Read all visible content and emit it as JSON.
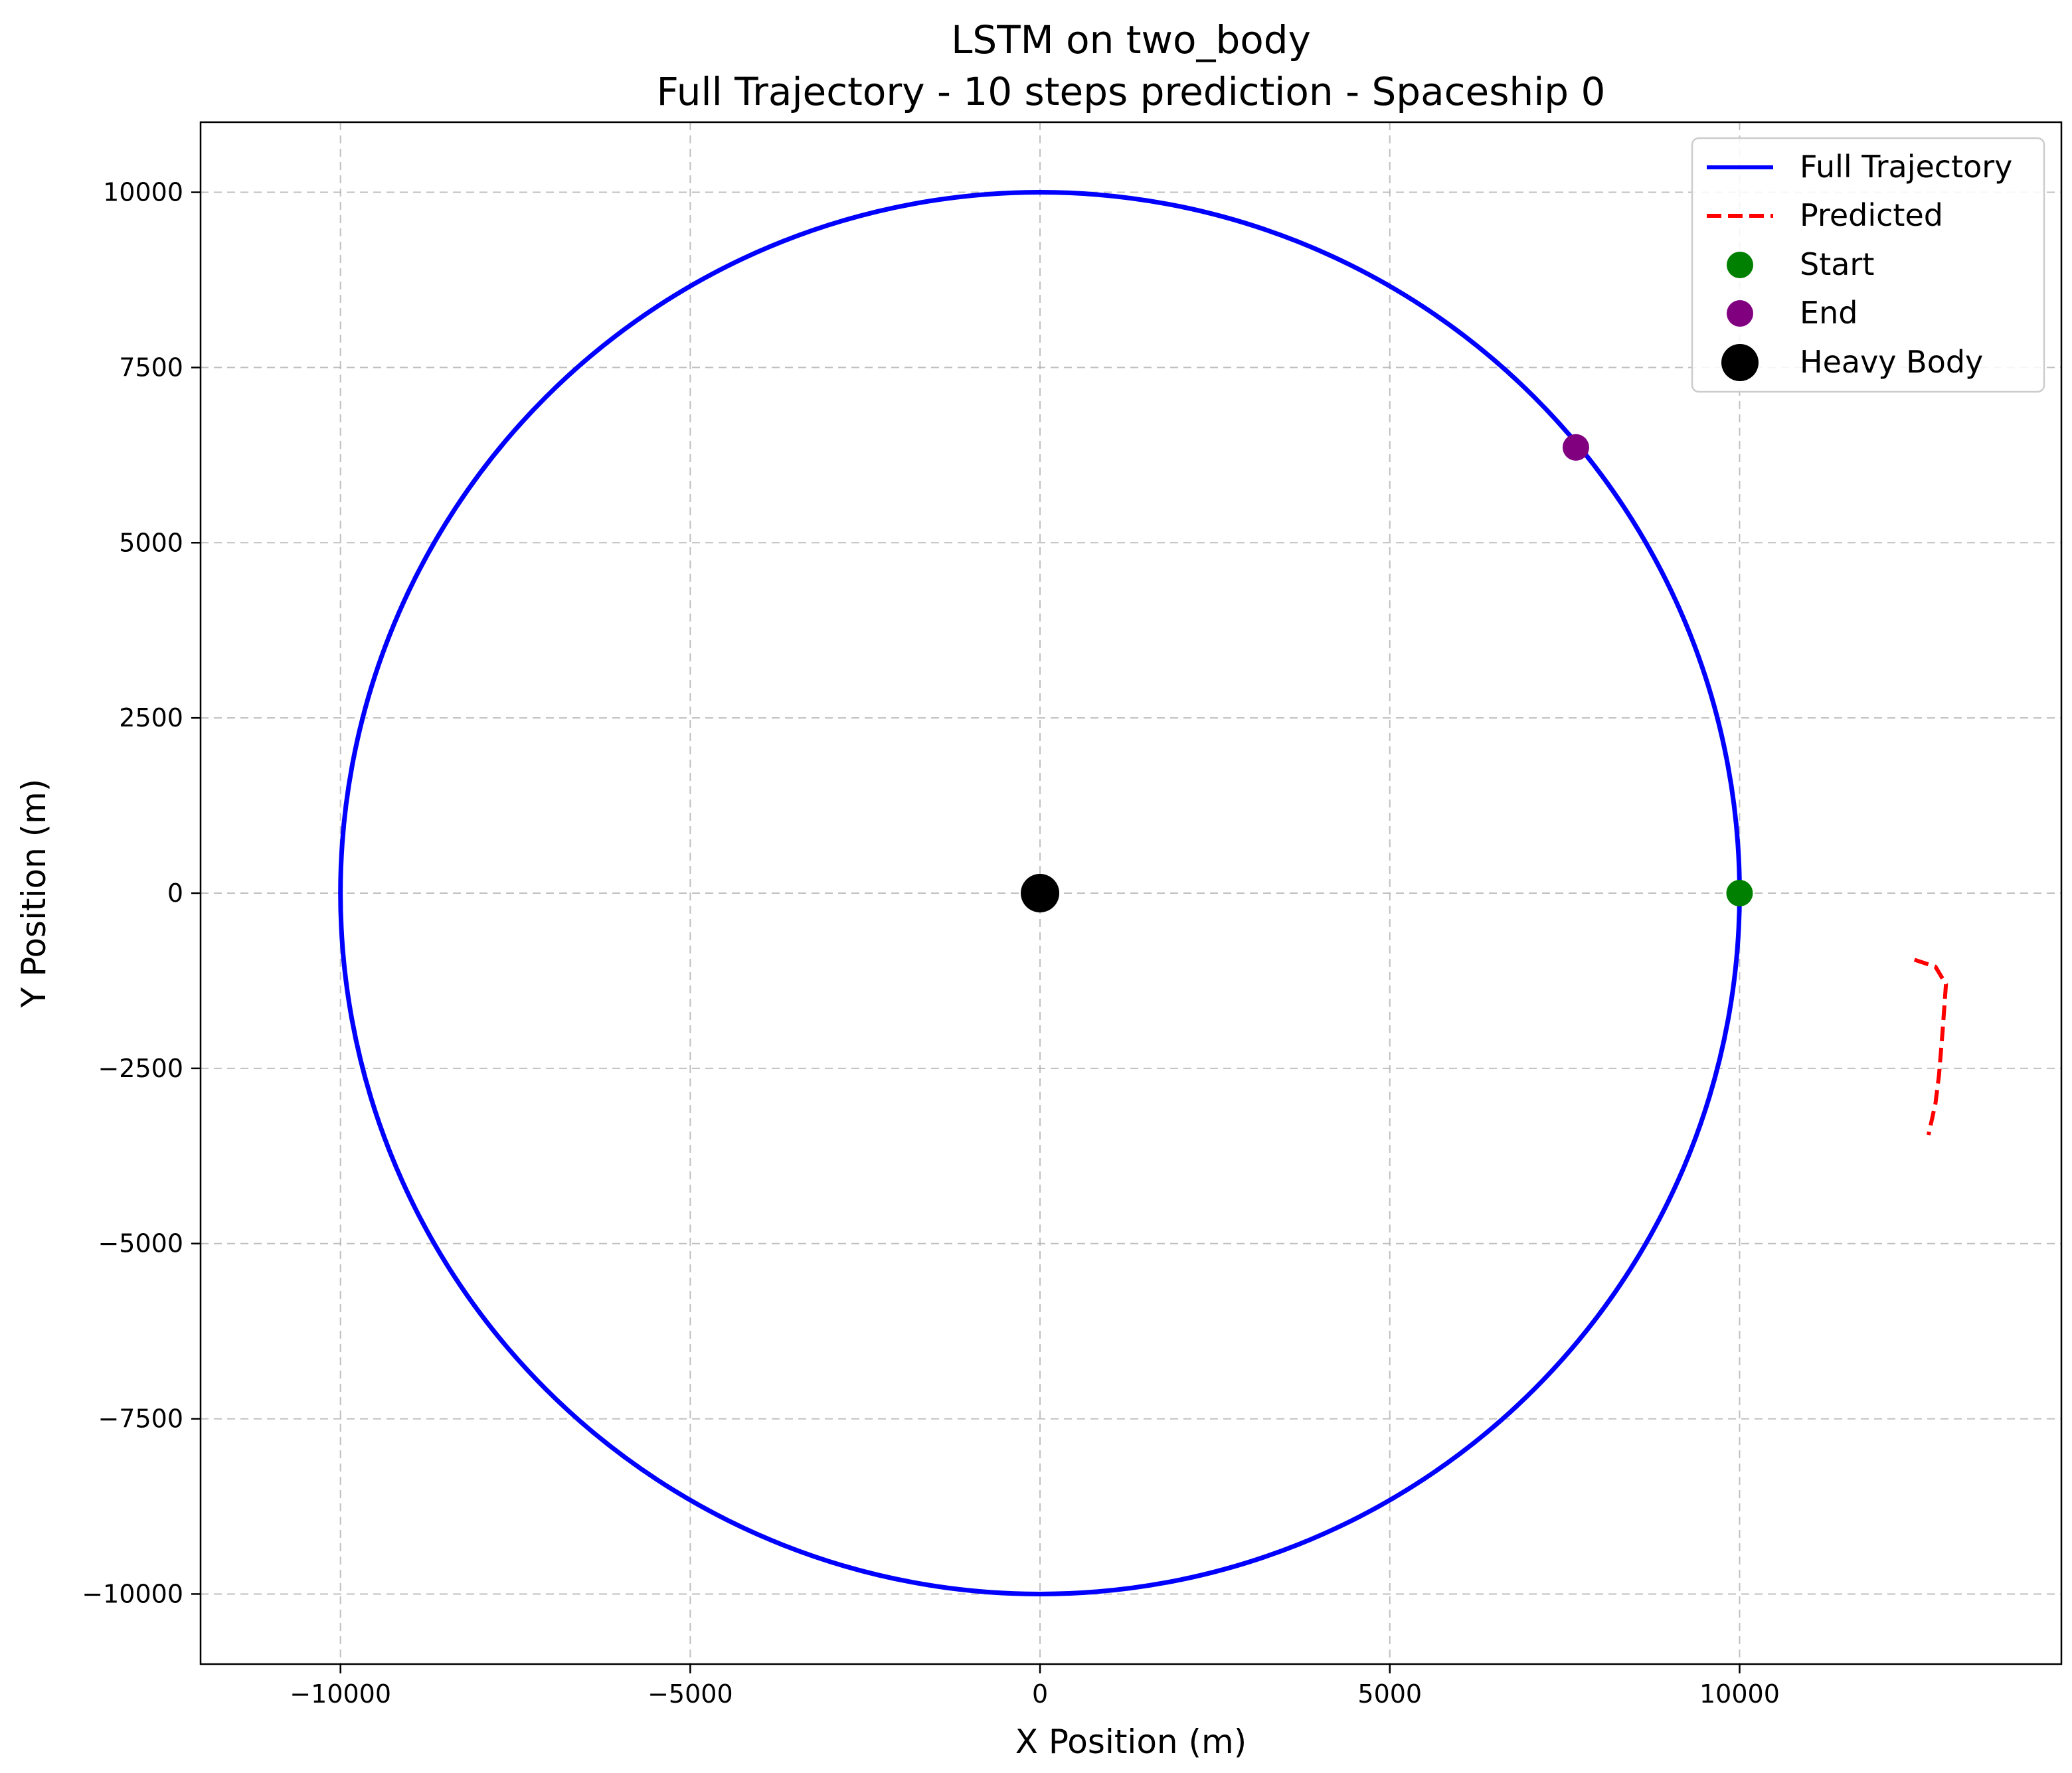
{
  "chart_data": {
    "type": "line",
    "title": "LSTM on two_body",
    "subtitle": "Full Trajectory - 10 steps prediction - Spaceship 0",
    "xlabel": "X Position (m)",
    "ylabel": "Y Position (m)",
    "xlim": [
      -12000,
      14600
    ],
    "ylim": [
      -11000,
      11000
    ],
    "x_ticks": [
      -10000,
      -5000,
      0,
      5000,
      10000
    ],
    "y_ticks": [
      -10000,
      -7500,
      -5000,
      -2500,
      0,
      2500,
      5000,
      7500,
      10000
    ],
    "x_tick_labels": [
      "−10000",
      "−5000",
      "0",
      "5000",
      "10000"
    ],
    "y_tick_labels": [
      "−10000",
      "−7500",
      "−5000",
      "−2500",
      "0",
      "2500",
      "5000",
      "7500",
      "10000"
    ],
    "grid": true,
    "legend_position": "top-right",
    "series": [
      {
        "name": "Full Trajectory",
        "kind": "circle",
        "color": "#0000ff",
        "center": [
          0,
          0
        ],
        "radius": 10000
      },
      {
        "name": "Predicted",
        "kind": "dashed-line",
        "color": "#ff0000",
        "x": [
          12500,
          12800,
          12950,
          12900,
          12850,
          12800,
          12700
        ],
        "y": [
          -950,
          -1050,
          -1300,
          -2000,
          -2600,
          -3000,
          -3450
        ]
      },
      {
        "name": "Start",
        "kind": "point",
        "color": "#008000",
        "x": 10000,
        "y": 0
      },
      {
        "name": "End",
        "kind": "point",
        "color": "#800080",
        "x": 7660,
        "y": 6360
      },
      {
        "name": "Heavy Body",
        "kind": "point",
        "color": "#000000",
        "x": 0,
        "y": 0
      }
    ]
  }
}
